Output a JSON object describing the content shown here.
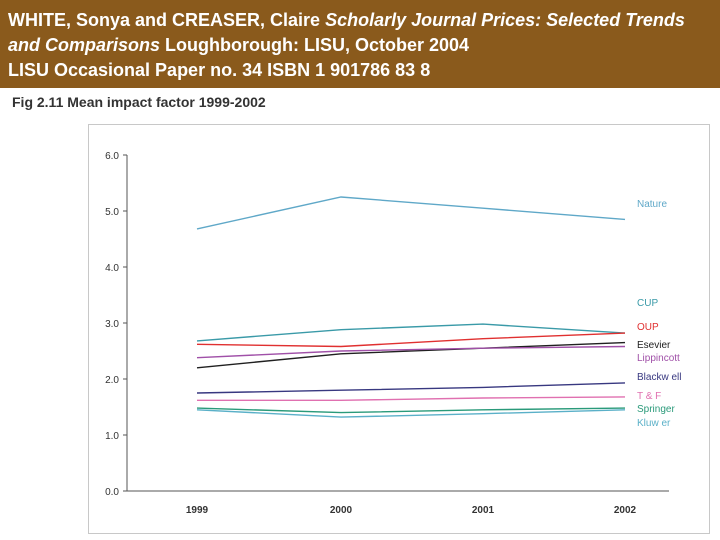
{
  "header": {
    "part1": "WHITE, Sonya and CREASER, Claire ",
    "part2_italic": "Scholarly Journal Prices: Selected Trends and Comparisons",
    "part3": " Loughborough: LISU, October 2004",
    "line3": "LISU Occasional Paper no. 34 ISBN 1 901786 83 8"
  },
  "chart_data": {
    "type": "line",
    "title": "Fig 2.11 Mean impact factor 1999-2002",
    "xlabel": "",
    "ylabel": "",
    "categories": [
      "1999",
      "2000",
      "2001",
      "2002"
    ],
    "y_ticks": [
      "0.0",
      "1.0",
      "2.0",
      "3.0",
      "4.0",
      "5.0",
      "6.0"
    ],
    "ylim": [
      0,
      6
    ],
    "grid": false,
    "legend": "right, labels at line ends",
    "series": [
      {
        "name": "Nature",
        "values": [
          4.68,
          5.25,
          5.05,
          4.85
        ],
        "color": "#5fa8c8"
      },
      {
        "name": "CUP",
        "values": [
          2.68,
          2.88,
          2.98,
          2.82
        ],
        "color": "#3a9aa8"
      },
      {
        "name": "OUP",
        "values": [
          2.62,
          2.58,
          2.72,
          2.82
        ],
        "color": "#e03030"
      },
      {
        "name": "Esevier",
        "values": [
          2.2,
          2.45,
          2.55,
          2.65
        ],
        "color": "#202020"
      },
      {
        "name": "Lippincott",
        "values": [
          2.38,
          2.5,
          2.55,
          2.58
        ],
        "color": "#a050a8"
      },
      {
        "name": "Blackwell",
        "values": [
          1.75,
          1.8,
          1.85,
          1.93
        ],
        "color": "#383880"
      },
      {
        "name": "T&F",
        "values": [
          1.62,
          1.62,
          1.66,
          1.68
        ],
        "color": "#e070b0"
      },
      {
        "name": "Springer",
        "values": [
          1.48,
          1.4,
          1.45,
          1.48
        ],
        "color": "#2a9a7a"
      },
      {
        "name": "Kluwer",
        "values": [
          1.45,
          1.32,
          1.38,
          1.45
        ],
        "color": "#5ab0c8"
      }
    ],
    "legend_labels": [
      "Nature",
      "CUP",
      "OUP",
      "Esevier",
      "Lippincott",
      "Blackw ell",
      "T & F",
      "Springer",
      "Kluw er"
    ]
  }
}
